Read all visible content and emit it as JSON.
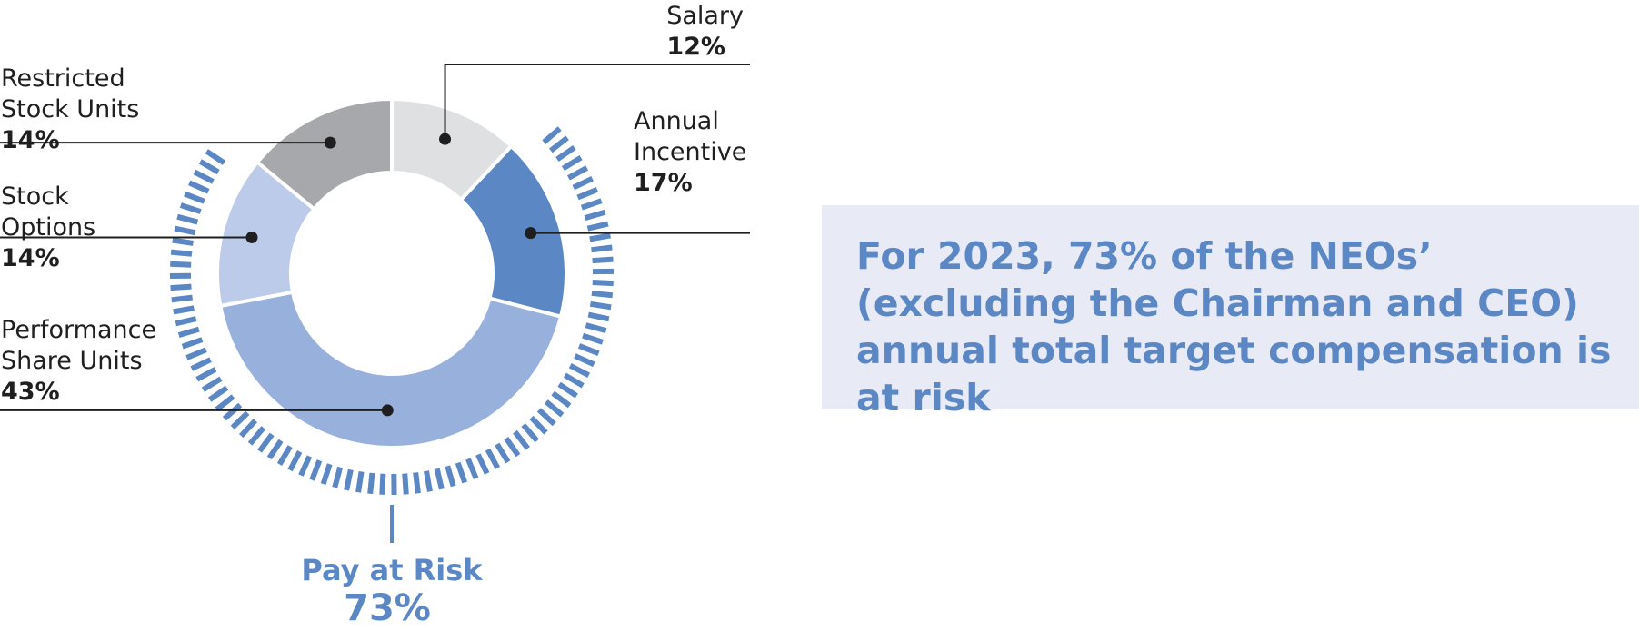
{
  "chart_data": {
    "type": "pie",
    "style": "donut",
    "slices": [
      {
        "label": [
          "Salary"
        ],
        "value": 12,
        "display": "12%",
        "color": "#dfe0e2",
        "at_risk": false
      },
      {
        "label": [
          "Annual",
          "Incentive"
        ],
        "value": 17,
        "display": "17%",
        "color": "#5b87c5",
        "at_risk": true
      },
      {
        "label": [
          "Performance",
          "Share Units"
        ],
        "value": 43,
        "display": "43%",
        "color": "#98b0dc",
        "at_risk": true
      },
      {
        "label": [
          "Stock",
          "Options"
        ],
        "value": 14,
        "display": "14%",
        "color": "#bccbe9",
        "at_risk": true
      },
      {
        "label": [
          "Restricted",
          "Stock Units"
        ],
        "value": 14,
        "display": "14%",
        "color": "#a7a8ab",
        "at_risk": false
      }
    ],
    "pay_at_risk": {
      "label": "Pay at Risk",
      "value": 73,
      "display": "73%",
      "color": "#5b87c5"
    }
  },
  "callout": {
    "text": "For 2023, 73% of the NEOs’ (excluding the Chairman and CEO) annual total target compensation is at risk",
    "background": "#e8ebf5",
    "color": "#5b87c5"
  }
}
